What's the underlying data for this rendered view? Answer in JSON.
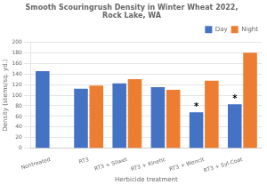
{
  "chart_data": {
    "type": "bar",
    "title": "Smooth Scouringrush Density in Winter Wheat 2022,\nRock Lake, WA",
    "xlabel": "Herbicide treatment",
    "ylabel": "Density (stems/sq. yd.)",
    "categories": [
      "Nontreated",
      "RT3",
      "RT3 + Silwet",
      "RT3 + Kinetic",
      "RT3 + Wencit",
      "RT3 + Syl-Coat"
    ],
    "series": [
      {
        "name": "Day",
        "color": "#4472C4",
        "values": [
          145,
          112,
          122,
          115,
          68,
          83
        ]
      },
      {
        "name": "Night",
        "color": "#ED7D31",
        "values": [
          null,
          118,
          130,
          110,
          127,
          180
        ]
      }
    ],
    "annotations": [
      {
        "text": "*",
        "series": "Day",
        "category": "RT3 + Wencit"
      },
      {
        "text": "*",
        "series": "Day",
        "category": "RT3 + Syl-Coat"
      }
    ],
    "ylim": [
      0,
      200
    ],
    "yticks": [
      0,
      20,
      40,
      60,
      80,
      100,
      120,
      140,
      160,
      180,
      200
    ],
    "grid": true,
    "legend": "upper right"
  }
}
